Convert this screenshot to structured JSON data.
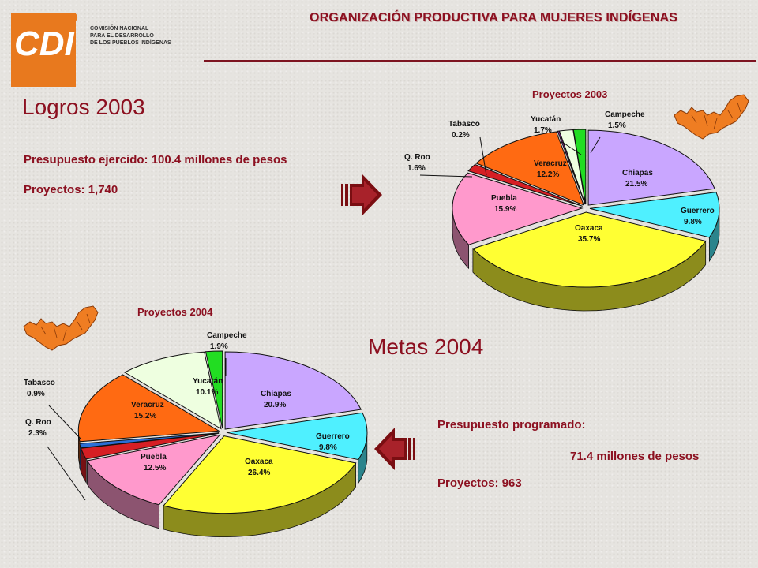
{
  "header": {
    "logo_text": "CDI",
    "org_name_lines": [
      "COMISIÓN NACIONAL",
      "PARA EL DESARROLLO",
      "DE LOS PUEBLOS INDÍGENAS"
    ],
    "slide_title": "ORGANIZACIÓN PRODUCTIVA PARA MUJERES INDÍGENAS"
  },
  "logros": {
    "heading": "Logros 2003",
    "presupuesto": "Presupuesto ejercido: 100.4 millones de pesos",
    "proyectos": "Proyectos: 1,740"
  },
  "metas": {
    "heading": "Metas 2004",
    "presupuesto_label": "Presupuesto programado:",
    "presupuesto_value": "71.4 millones de pesos",
    "proyectos": "Proyectos:  963"
  },
  "colors": {
    "accent": "#8c1020",
    "logo_orange": "#e8791e",
    "map_orange": "#ef7d22"
  },
  "icons": [
    "cdi-logo",
    "arrow-right-icon",
    "arrow-left-icon",
    "mexico-region-map-icon"
  ],
  "chart_data": [
    {
      "type": "pie",
      "title": "Proyectos 2003",
      "categories": [
        "Chiapas",
        "Guerrero",
        "Oaxaca",
        "Puebla",
        "Q. Roo",
        "Veracruz",
        "Tabasco",
        "Yucatán",
        "Campeche"
      ],
      "values": [
        21.5,
        9.8,
        35.7,
        15.9,
        1.6,
        12.2,
        0.2,
        1.7,
        1.5
      ],
      "labels": [
        "21.5%",
        "9.8%",
        "35.7%",
        "15.9%",
        "1.6%",
        "12.2%",
        "0.2%",
        "1.7%",
        "1.5%"
      ],
      "colors": [
        "#c9a6ff",
        "#4ff0ff",
        "#ffff33",
        "#ff99cc",
        "#d61f24",
        "#ff6a12",
        "#7b2d8e",
        "#eeffe0",
        "#22dd22"
      ]
    },
    {
      "type": "pie",
      "title": "Proyectos 2004",
      "categories": [
        "Chiapas",
        "Guerrero",
        "Oaxaca",
        "Puebla",
        "Q. Roo",
        "Tabasco",
        "Veracruz",
        "Yucatán",
        "Campeche"
      ],
      "values": [
        20.9,
        9.8,
        26.4,
        12.5,
        2.3,
        0.9,
        15.2,
        10.1,
        1.9
      ],
      "labels": [
        "20.9%",
        "9.8%",
        "26.4%",
        "12.5%",
        "2.3%",
        "0.9%",
        "15.2%",
        "10.1%",
        "1.9%"
      ],
      "colors": [
        "#c9a6ff",
        "#4ff0ff",
        "#ffff33",
        "#ff99cc",
        "#d61f24",
        "#2b6fd6",
        "#ff6a12",
        "#eeffe0",
        "#22dd22"
      ]
    }
  ]
}
